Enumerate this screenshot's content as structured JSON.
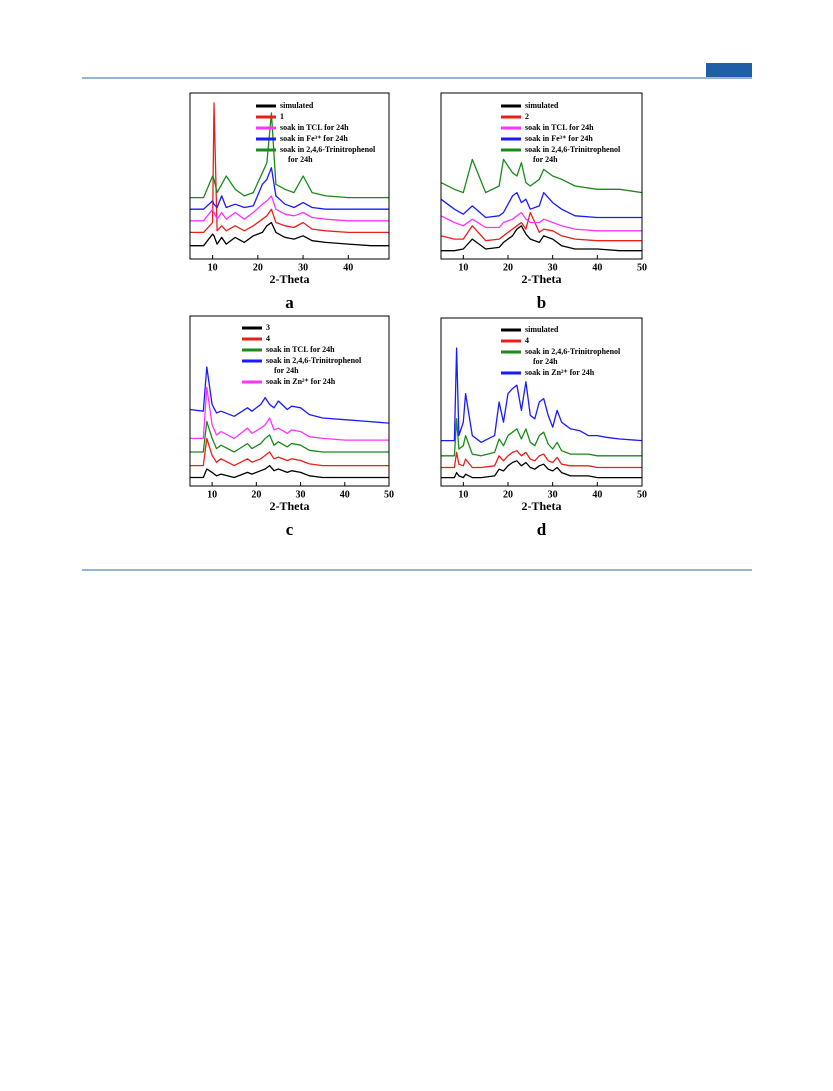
{
  "chart_data": [
    {
      "type": "line",
      "label": "a",
      "xlabel": "2-Theta",
      "xlim": [
        5,
        49
      ],
      "xticks": [
        10,
        20,
        30,
        40
      ],
      "ylim": [
        0,
        100
      ],
      "x": [
        5,
        8,
        10,
        10.3,
        11,
        12,
        13,
        15,
        17,
        19,
        21,
        22,
        23,
        24,
        26,
        28,
        30,
        32,
        35,
        40,
        45,
        49
      ],
      "series": [
        {
          "name": "simulated",
          "color": "#000000",
          "values": [
            8,
            8,
            15,
            14,
            9,
            13,
            9,
            13,
            10,
            14,
            16,
            20,
            22,
            16,
            13,
            12,
            14,
            11,
            10,
            9,
            8,
            8
          ]
        },
        {
          "name": "1",
          "color": "#e8201a",
          "values": [
            16,
            16,
            22,
            94,
            17,
            20,
            17,
            20,
            17,
            20,
            24,
            26,
            30,
            22,
            20,
            19,
            22,
            18,
            17,
            16,
            16,
            16
          ]
        },
        {
          "name": "soak in TCL for 24h",
          "color": "#ff33ff",
          "values": [
            23,
            23,
            30,
            28,
            24,
            28,
            24,
            28,
            24,
            28,
            33,
            35,
            38,
            30,
            27,
            26,
            28,
            25,
            24,
            23,
            23,
            23
          ]
        },
        {
          "name": "soak in Fe³⁺ for 24h",
          "color": "#1a1aff",
          "values": [
            30,
            30,
            35,
            33,
            31,
            38,
            31,
            33,
            31,
            32,
            45,
            48,
            55,
            38,
            33,
            31,
            34,
            31,
            30,
            30,
            30,
            30
          ]
        },
        {
          "name": "soak in 2,4,6-Trinitrophenol\nfor 24h",
          "color": "#1a8a1a",
          "values": [
            37,
            37,
            50,
            48,
            40,
            45,
            50,
            42,
            38,
            40,
            52,
            58,
            88,
            45,
            42,
            40,
            50,
            40,
            38,
            37,
            37,
            37
          ]
        }
      ]
    },
    {
      "type": "line",
      "label": "b",
      "xlabel": "2-Theta",
      "xlim": [
        5,
        50
      ],
      "xticks": [
        10,
        20,
        30,
        40,
        50
      ],
      "ylim": [
        0,
        100
      ],
      "x": [
        5,
        8,
        10,
        12,
        15,
        18,
        19,
        21,
        22,
        23,
        24,
        25,
        27,
        28,
        30,
        32,
        35,
        40,
        45,
        50
      ],
      "series": [
        {
          "name": "simulated",
          "color": "#000000",
          "values": [
            5,
            5,
            6,
            12,
            6,
            7,
            10,
            14,
            18,
            20,
            15,
            12,
            10,
            14,
            12,
            8,
            6,
            6,
            5,
            5
          ]
        },
        {
          "name": "2",
          "color": "#e8201a",
          "values": [
            14,
            12,
            12,
            20,
            11,
            12,
            14,
            18,
            20,
            22,
            18,
            28,
            16,
            18,
            17,
            14,
            12,
            11,
            11,
            11
          ]
        },
        {
          "name": "soak in TCL for 24h",
          "color": "#ff33ff",
          "values": [
            26,
            22,
            20,
            24,
            19,
            19,
            22,
            24,
            26,
            28,
            24,
            22,
            22,
            24,
            22,
            20,
            18,
            17,
            17,
            17
          ]
        },
        {
          "name": "soak in Fe³⁺ for 24h",
          "color": "#1a1aff",
          "values": [
            36,
            30,
            27,
            32,
            25,
            26,
            28,
            38,
            40,
            34,
            36,
            30,
            32,
            40,
            34,
            30,
            26,
            25,
            25,
            25
          ]
        },
        {
          "name": "soak in 2,4,6-Trinitrophenol\nfor 24h",
          "color": "#1a8a1a",
          "values": [
            46,
            42,
            40,
            60,
            40,
            44,
            60,
            52,
            50,
            58,
            46,
            44,
            48,
            54,
            50,
            48,
            44,
            42,
            42,
            40
          ]
        }
      ]
    },
    {
      "type": "line",
      "label": "c",
      "xlabel": "2-Theta",
      "xlim": [
        5,
        50
      ],
      "xticks": [
        10,
        20,
        30,
        40,
        50
      ],
      "ylim": [
        0,
        100
      ],
      "x": [
        5,
        8,
        8.8,
        10,
        11,
        12,
        15,
        18,
        19,
        21,
        22,
        23,
        24,
        25,
        27,
        28,
        30,
        32,
        35,
        40,
        45,
        50
      ],
      "series": [
        {
          "name": "3",
          "color": "#000000",
          "values": [
            5,
            5,
            10,
            8,
            6,
            7,
            5,
            8,
            7,
            9,
            10,
            12,
            9,
            10,
            8,
            9,
            8,
            6,
            5,
            5,
            5,
            5
          ]
        },
        {
          "name": "4",
          "color": "#e8201a",
          "values": [
            12,
            12,
            28,
            18,
            14,
            16,
            12,
            16,
            14,
            16,
            18,
            20,
            16,
            17,
            15,
            16,
            15,
            13,
            12,
            12,
            12,
            12
          ]
        },
        {
          "name": "soak in TCL for 24h",
          "color": "#1a8a1a",
          "values": [
            20,
            20,
            38,
            28,
            22,
            24,
            20,
            25,
            22,
            25,
            28,
            30,
            24,
            26,
            23,
            25,
            24,
            21,
            20,
            20,
            20,
            20
          ]
        },
        {
          "name": "soak in 2,4,6-Trinitrophenol\nfor 24h",
          "color": "#1a1aff",
          "values": [
            45,
            44,
            70,
            48,
            43,
            44,
            41,
            46,
            44,
            48,
            52,
            48,
            46,
            50,
            45,
            47,
            46,
            42,
            40,
            39,
            38,
            37
          ]
        },
        {
          "name": "soak in Zn²⁺ for 24h",
          "color": "#ff33ff",
          "values": [
            28,
            28,
            58,
            36,
            30,
            32,
            28,
            34,
            31,
            34,
            36,
            40,
            33,
            34,
            31,
            33,
            32,
            29,
            28,
            27,
            27,
            27
          ]
        }
      ]
    },
    {
      "type": "line",
      "label": "d",
      "xlabel": "2-Theta",
      "xlim": [
        5,
        50
      ],
      "xticks": [
        10,
        20,
        30,
        40,
        50
      ],
      "ylim": [
        0,
        100
      ],
      "x": [
        5,
        8,
        8.5,
        9,
        10,
        10.5,
        12,
        14,
        17,
        18,
        19,
        20,
        21,
        22,
        23,
        24,
        25,
        26,
        27,
        28,
        29,
        30,
        31,
        32,
        34,
        36,
        38,
        40,
        42,
        45,
        50
      ],
      "series": [
        {
          "name": "simulated",
          "color": "#000000",
          "values": [
            5,
            5,
            8,
            6,
            5,
            7,
            5,
            5,
            6,
            10,
            9,
            12,
            14,
            15,
            12,
            14,
            11,
            10,
            12,
            13,
            10,
            9,
            11,
            8,
            6,
            6,
            6,
            5,
            5,
            5,
            5
          ]
        },
        {
          "name": "4",
          "color": "#e8201a",
          "values": [
            11,
            11,
            20,
            13,
            12,
            16,
            11,
            11,
            12,
            18,
            15,
            18,
            20,
            21,
            18,
            20,
            16,
            15,
            18,
            19,
            15,
            14,
            17,
            13,
            12,
            12,
            12,
            11,
            11,
            11,
            11
          ]
        },
        {
          "name": "soak in 2,4,6-Trinitrophenol\nfor 24h",
          "color": "#1a8a1a",
          "values": [
            18,
            18,
            40,
            22,
            24,
            30,
            19,
            18,
            20,
            28,
            24,
            30,
            32,
            34,
            28,
            34,
            26,
            24,
            30,
            32,
            25,
            22,
            26,
            21,
            19,
            19,
            19,
            18,
            18,
            18,
            18
          ]
        },
        {
          "name": "soak in Zn²⁺ for 24h",
          "color": "#1a1aff",
          "values": [
            27,
            27,
            82,
            30,
            38,
            55,
            30,
            26,
            30,
            50,
            38,
            55,
            58,
            60,
            45,
            62,
            42,
            40,
            50,
            52,
            42,
            35,
            45,
            38,
            34,
            33,
            30,
            30,
            29,
            28,
            27
          ]
        }
      ]
    }
  ]
}
